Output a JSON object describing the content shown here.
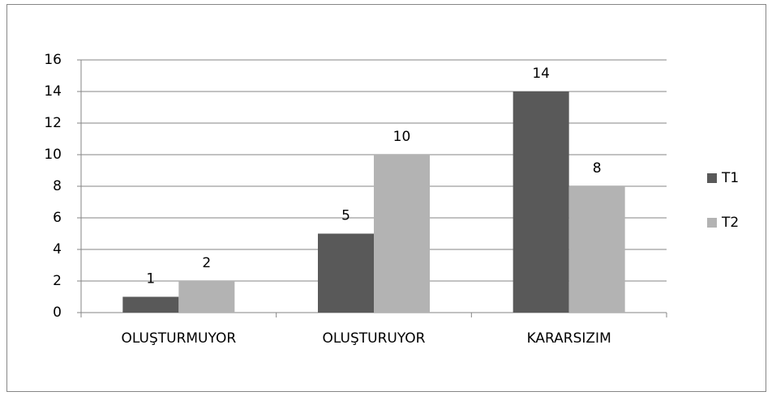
{
  "chart_data": {
    "type": "bar",
    "categories": [
      "OLUŞTURMUYOR",
      "OLUŞTURUYOR",
      "KARARSIZIM"
    ],
    "series": [
      {
        "name": "T1",
        "color": "#595959",
        "values": [
          1,
          5,
          14
        ]
      },
      {
        "name": "T2",
        "color": "#b3b3b3",
        "values": [
          2,
          10,
          8
        ]
      }
    ],
    "ylim": [
      0,
      16
    ],
    "yticks": [
      0,
      2,
      4,
      6,
      8,
      10,
      12,
      14,
      16
    ],
    "grid": true,
    "legend": "right"
  }
}
